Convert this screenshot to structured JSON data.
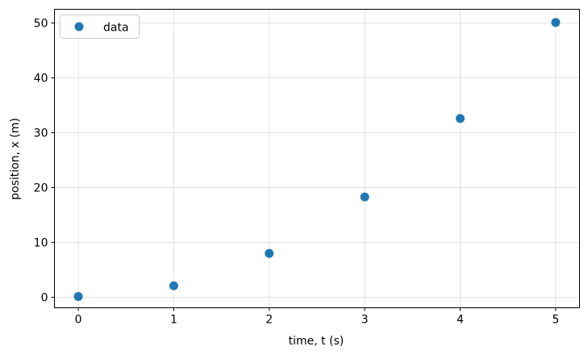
{
  "chart_data": {
    "type": "scatter",
    "title": "",
    "xlabel": "time, t (s)",
    "ylabel": "position, x (m)",
    "xlim": [
      -0.25,
      5.25
    ],
    "ylim": [
      -1.9,
      52.5
    ],
    "xticks": [
      0,
      1,
      2,
      3,
      4,
      5
    ],
    "yticks": [
      0,
      10,
      20,
      30,
      40,
      50
    ],
    "grid": true,
    "legend": {
      "placement": "top-left",
      "entries": [
        "data"
      ]
    },
    "series": [
      {
        "name": "data",
        "color": "#1f77b4",
        "marker": "circle",
        "x": [
          0,
          1,
          2,
          3,
          4,
          5
        ],
        "y": [
          0.15,
          2.1,
          8.0,
          18.3,
          32.6,
          50.1
        ]
      }
    ]
  }
}
